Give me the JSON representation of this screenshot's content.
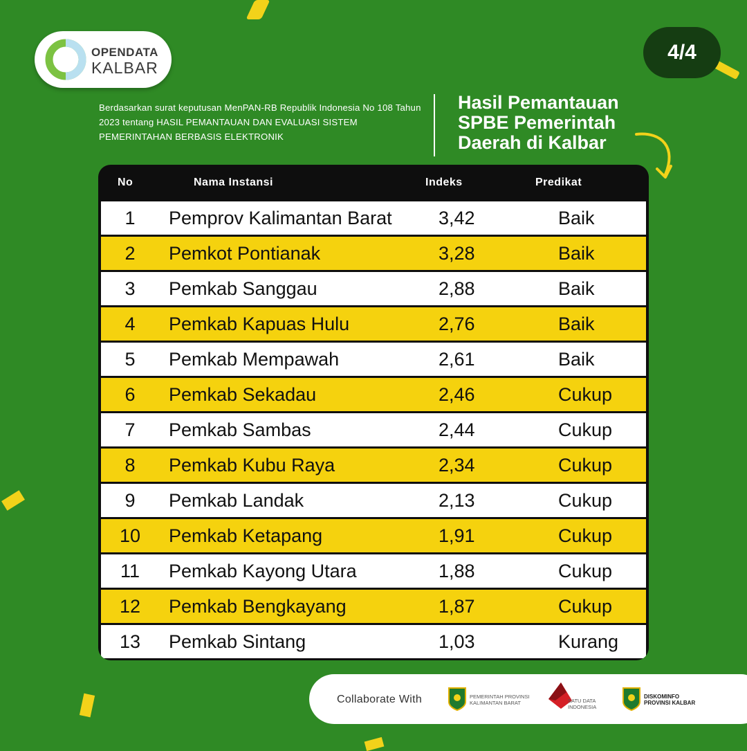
{
  "brand": {
    "line1": "OPENDATA",
    "line2": "KALBAR"
  },
  "page_indicator": "4/4",
  "intro_text": "Berdasarkan surat keputusan MenPAN-RB Republik Indonesia No 108 Tahun 2023 tentang HASIL PEMANTAUAN DAN EVALUASI SISTEM PEMERINTAHAN BERBASIS ELEKTRONIK",
  "headline": "Hasil Pemantauan SPBE Pemerintah Daerah di Kalbar",
  "table": {
    "headers": {
      "no": "No",
      "name": "Nama Instansi",
      "index": "Indeks",
      "predicate": "Predikat"
    },
    "rows": [
      {
        "no": "1",
        "name": "Pemprov Kalimantan Barat",
        "index": "3,42",
        "predicate": "Baik"
      },
      {
        "no": "2",
        "name": "Pemkot Pontianak",
        "index": "3,28",
        "predicate": "Baik"
      },
      {
        "no": "3",
        "name": "Pemkab Sanggau",
        "index": "2,88",
        "predicate": "Baik"
      },
      {
        "no": "4",
        "name": "Pemkab Kapuas Hulu",
        "index": "2,76",
        "predicate": "Baik"
      },
      {
        "no": "5",
        "name": "Pemkab Mempawah",
        "index": "2,61",
        "predicate": "Baik"
      },
      {
        "no": "6",
        "name": "Pemkab Sekadau",
        "index": "2,46",
        "predicate": "Cukup"
      },
      {
        "no": "7",
        "name": "Pemkab Sambas",
        "index": "2,44",
        "predicate": "Cukup"
      },
      {
        "no": "8",
        "name": "Pemkab Kubu Raya",
        "index": "2,34",
        "predicate": "Cukup"
      },
      {
        "no": "9",
        "name": "Pemkab Landak",
        "index": "2,13",
        "predicate": "Cukup"
      },
      {
        "no": "10",
        "name": "Pemkab Ketapang",
        "index": "1,91",
        "predicate": "Cukup"
      },
      {
        "no": "11",
        "name": "Pemkab Kayong Utara",
        "index": "1,88",
        "predicate": "Cukup"
      },
      {
        "no": "12",
        "name": "Pemkab Bengkayang",
        "index": "1,87",
        "predicate": "Cukup"
      },
      {
        "no": "13",
        "name": "Pemkab Sintang",
        "index": "1,03",
        "predicate": "Kurang"
      }
    ]
  },
  "footer": {
    "collab_label": "Collaborate With",
    "partners": [
      {
        "icon": "pemprov-kalbar-emblem-icon",
        "line1": "Pemerintah Provinsi",
        "line2": "Kalimantan Barat"
      },
      {
        "icon": "satu-data-indonesia-icon",
        "line1": "Satu Data",
        "line2": "Indonesia"
      },
      {
        "icon": "diskominfo-emblem-icon",
        "line1": "Diskominfo",
        "line2": "Provinsi Kalbar"
      }
    ]
  },
  "colors": {
    "background": "#2f8a25",
    "accent_yellow": "#f5d20e",
    "table_dark": "#0e0e0e",
    "badge_dark": "#153d12"
  }
}
